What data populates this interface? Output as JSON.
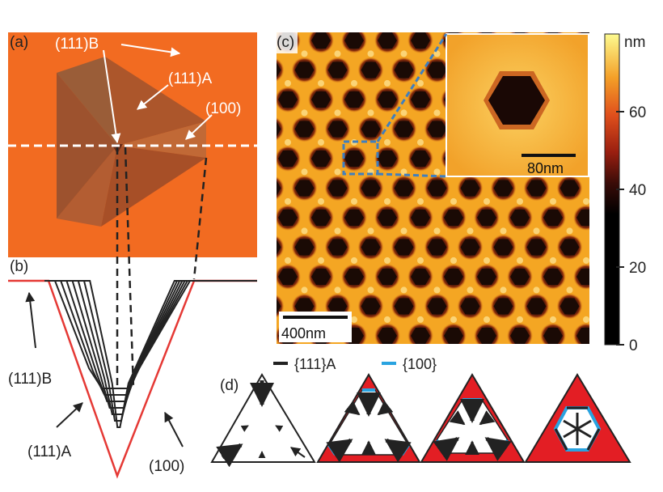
{
  "panel_a": {
    "label": "(a)",
    "annotations": {
      "b111": "(111)B",
      "a111": "(111)A",
      "f100": "(100)"
    },
    "colors": {
      "background": "#F26B21",
      "pyramid": "#A0522D",
      "dashed": "#FFFFFF"
    }
  },
  "panel_b": {
    "label": "(b)",
    "annotations": {
      "b111": "(111)B",
      "a111": "(111)A",
      "f100": "(100)"
    },
    "profile_count": 7,
    "colors": {
      "outline": "#E53935",
      "profiles": "#222222"
    }
  },
  "panel_c": {
    "label": "(c)",
    "scalebar_main": "400nm",
    "scalebar_inset": "80nm",
    "colorbar_unit": "nm",
    "colorbar_ticks": [
      "60",
      "40",
      "20",
      "0"
    ],
    "colorbar_tick_values": [
      60,
      40,
      20,
      0
    ],
    "colorbar_range": [
      0,
      80
    ],
    "colors": {
      "surface": "#F4A623",
      "pit": "#1A0A05",
      "box": "#3F7FBF"
    }
  },
  "panel_d": {
    "label": "(d)",
    "legend": [
      {
        "text": "{111}A",
        "color": "#222222"
      },
      {
        "text": "{100}",
        "color": "#29A3E0"
      }
    ],
    "colors": {
      "fill": "#E31E24",
      "facet100": "#29A3E0"
    }
  }
}
